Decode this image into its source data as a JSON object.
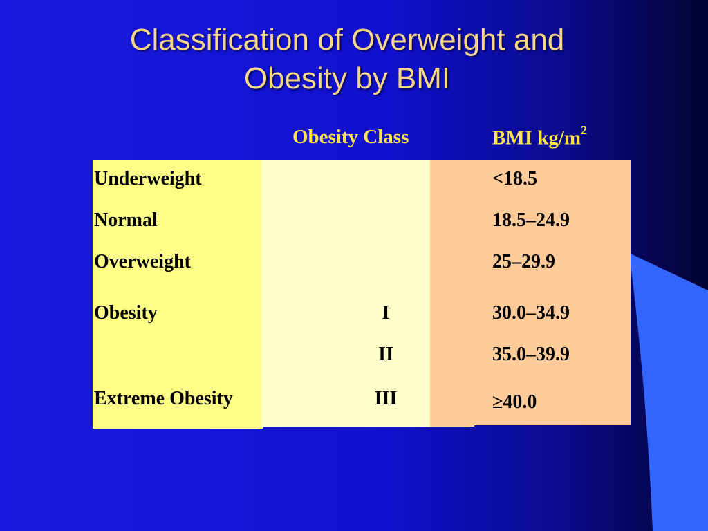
{
  "title": {
    "line1": "Classification of Overweight and",
    "line2": "Obesity by BMI"
  },
  "headers": {
    "obesity_class": "Obesity Class",
    "bmi_base": "BMI kg/m",
    "bmi_sup": "2"
  },
  "rows": [
    {
      "category": "Underweight",
      "class": "",
      "bmi": "<18.5"
    },
    {
      "category": "Normal",
      "class": "",
      "bmi": "18.5–24.9"
    },
    {
      "category": "Overweight",
      "class": "",
      "bmi": "25–29.9"
    },
    {
      "category": "Obesity",
      "class": "I",
      "bmi": "30.0–34.9"
    },
    {
      "category": "",
      "class": "II",
      "bmi": "35.0–39.9"
    },
    {
      "category": "Extreme Obesity",
      "class": "III",
      "bmi": "≥40.0"
    }
  ],
  "colors": {
    "title": "#f6d78a",
    "header": "#ffe44a",
    "col_category": "#ffff88",
    "col_class": "#ffffcc",
    "col_bmi": "#ffcc99"
  }
}
